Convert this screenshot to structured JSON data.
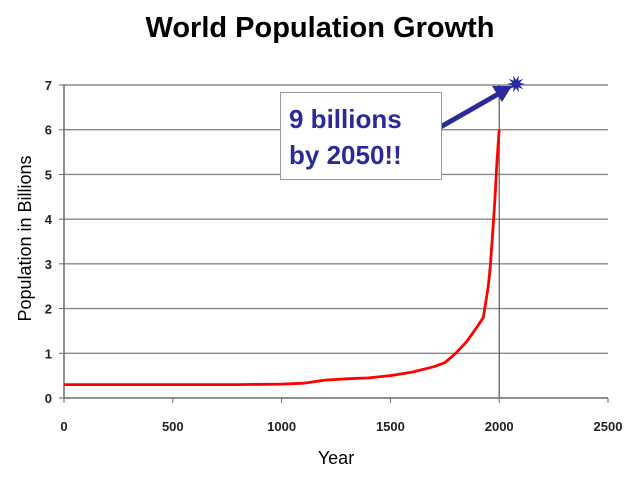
{
  "chart_data": {
    "type": "line",
    "title": "World Population Growth",
    "xlabel": "Year",
    "ylabel": "Population in Billions",
    "xlim": [
      0,
      2500
    ],
    "ylim": [
      0,
      7
    ],
    "xticks": [
      0,
      500,
      1000,
      1500,
      2000,
      2500
    ],
    "yticks": [
      0,
      1,
      2,
      3,
      4,
      5,
      6,
      7
    ],
    "grid": true,
    "series": [
      {
        "color": "#ff0000",
        "x": [
          0,
          200,
          400,
          600,
          800,
          1000,
          1100,
          1200,
          1300,
          1400,
          1500,
          1600,
          1700,
          1750,
          1800,
          1850,
          1900,
          1927,
          1950,
          1960,
          1970,
          1980,
          1990,
          2000
        ],
        "y": [
          0.3,
          0.3,
          0.3,
          0.3,
          0.3,
          0.31,
          0.33,
          0.4,
          0.43,
          0.45,
          0.5,
          0.58,
          0.7,
          0.79,
          1.0,
          1.26,
          1.6,
          1.8,
          2.5,
          3.0,
          3.7,
          4.4,
          5.3,
          6.0
        ]
      }
    ],
    "reference_line": {
      "x": 2000,
      "color": "#555555"
    },
    "annotation": {
      "lines": [
        "9 billions",
        "by 2050!!"
      ],
      "color": "#2a2a9a",
      "arrow_color": "#2a2a9a"
    }
  }
}
